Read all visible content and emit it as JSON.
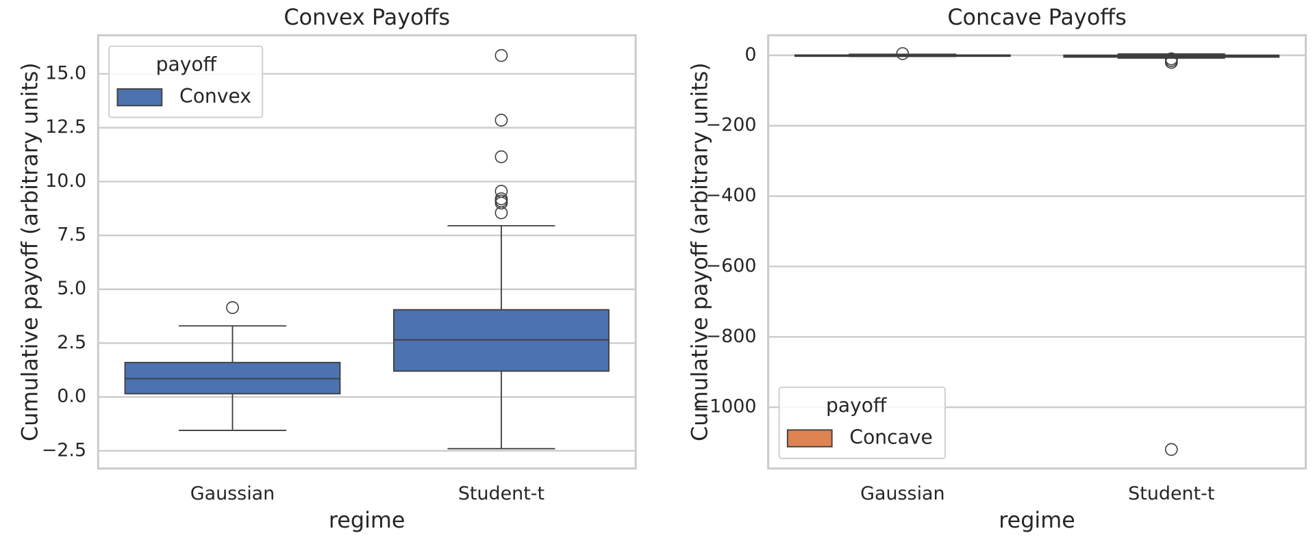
{
  "chart_data": [
    {
      "type": "box",
      "title": "Convex Payoffs",
      "x_label": "regime",
      "y_label": "Cumulative payoff (arbitrary units)",
      "categories": [
        "Gaussian",
        "Student-t"
      ],
      "ylim": [
        -3.32,
        16.79
      ],
      "yticks": [
        {
          "value": -2.5,
          "label": "−2.5"
        },
        {
          "value": 0,
          "label": "0.0"
        },
        {
          "value": 2.5,
          "label": "2.5"
        },
        {
          "value": 5,
          "label": "5.0"
        },
        {
          "value": 7.5,
          "label": "7.5"
        },
        {
          "value": 10,
          "label": "10.0"
        },
        {
          "value": 12.5,
          "label": "12.5"
        },
        {
          "value": 15,
          "label": "15.0"
        }
      ],
      "grid": true,
      "legend_title": "payoff",
      "legend_position": "upper-left",
      "series": [
        {
          "name": "Convex",
          "color": "#4c72b0",
          "values": [
            {
              "whislo": -1.55,
              "q1": 0.15,
              "median": 0.85,
              "q3": 1.6,
              "whishi": 3.3,
              "fliers": [
                4.15
              ]
            },
            {
              "whislo": -2.4,
              "q1": 1.2,
              "median": 2.65,
              "q3": 4.05,
              "whishi": 7.95,
              "fliers": [
                8.55,
                9.0,
                9.1,
                9.2,
                9.55,
                11.15,
                12.85,
                15.85
              ]
            }
          ]
        }
      ]
    },
    {
      "type": "box",
      "title": "Concave Payoffs",
      "x_label": "regime",
      "y_label": "Cumulative payoff (arbitrary units)",
      "categories": [
        "Gaussian",
        "Student-t"
      ],
      "ylim": [
        -1174,
        57
      ],
      "yticks": [
        {
          "value": -1000,
          "label": "−1000"
        },
        {
          "value": -800,
          "label": "−800"
        },
        {
          "value": -600,
          "label": "−600"
        },
        {
          "value": -400,
          "label": "−400"
        },
        {
          "value": -200,
          "label": "−200"
        },
        0
      ],
      "grid": true,
      "legend_title": "payoff",
      "legend_position": "lower-left",
      "series": [
        {
          "name": "Concave",
          "color": "#dd8452",
          "values": [
            {
              "whislo": -3,
              "q1": -1,
              "median": 0,
              "q3": 1,
              "whishi": 3,
              "fliers": [
                5
              ]
            },
            {
              "whislo": -8,
              "q1": -5,
              "median": -2,
              "q3": 0.5,
              "whishi": 4,
              "fliers": [
                -10,
                -15,
                -20,
                -1120
              ]
            }
          ]
        }
      ]
    }
  ]
}
